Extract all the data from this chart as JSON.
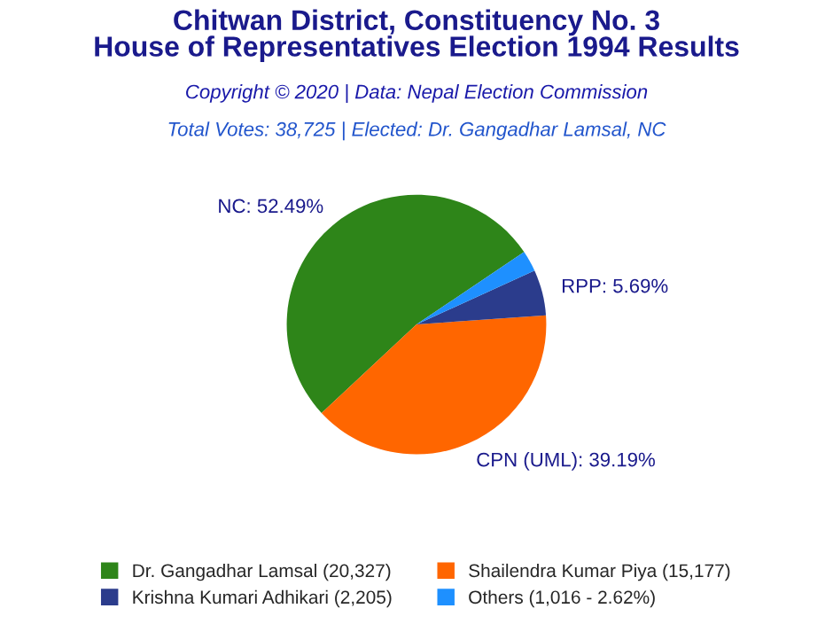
{
  "chart_data": {
    "type": "pie",
    "title": "Chitwan District, Constituency No. 3\nHouse of Representatives Election 1994 Results",
    "subtitle": "Copyright © 2020 | Data: Nepal Election Commission",
    "annotations": [
      "Total Votes: 38,725 | Elected: Dr. Gangadhar Lamsal, NC"
    ],
    "categories": [
      "Dr. Gangadhar Lamsal (20,327)",
      "Shailendra Kumar Piya (15,177)",
      "Krishna Kumari Adhikari (2,205)",
      "Others (1,016 - 2.62%)"
    ],
    "values": [
      52.49,
      39.19,
      5.69,
      2.62
    ],
    "value_labels": [
      "NC: 52.49%",
      "CPN (UML): 39.19%",
      "RPP: 5.69%",
      null
    ],
    "colors": [
      "#2e8519",
      "#ff6600",
      "#2b3c8c",
      "#1e90ff"
    ],
    "legend": "bottom"
  }
}
